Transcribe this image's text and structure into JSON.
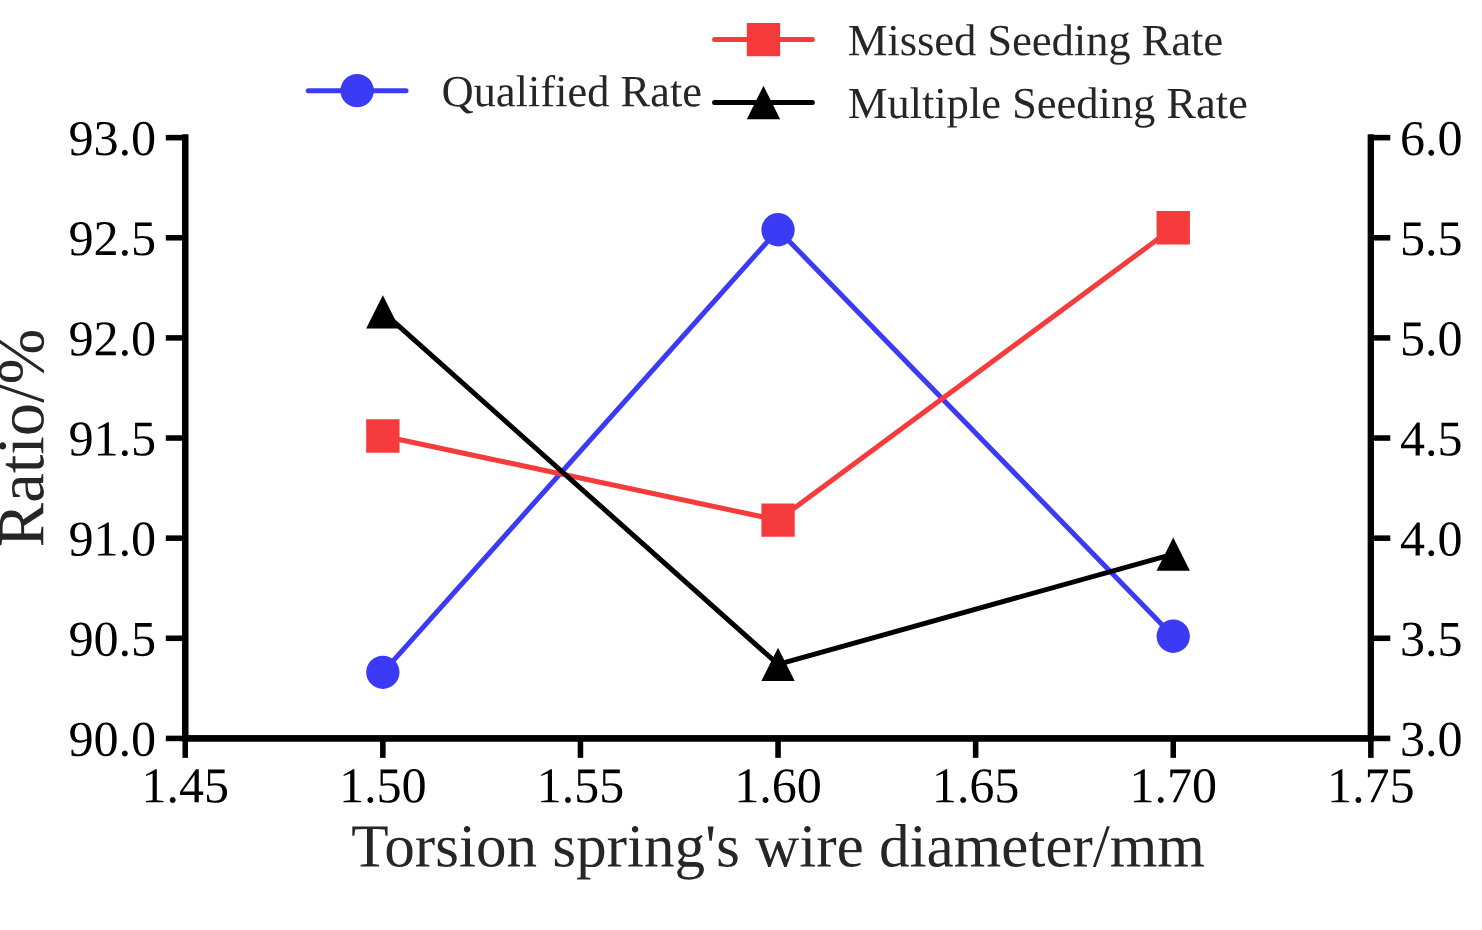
{
  "chart_data": {
    "type": "line",
    "xlabel": "Torsion spring's wire diameter/mm",
    "ylabel": "Ratio/%",
    "x": [
      1.5,
      1.6,
      1.7
    ],
    "series": [
      {
        "name": "Qualified Rate",
        "color": "#3b3bf5",
        "marker": "circle",
        "values": [
          90.33,
          92.54,
          90.51
        ]
      },
      {
        "name": "Missed Seeding Rate",
        "color": "#f53b3b",
        "marker": "square",
        "axis": "y2",
        "values": [
          4.51,
          4.09,
          5.55
        ]
      },
      {
        "name": "Multiple Seeding Rate",
        "color": "#000000",
        "marker": "triangle",
        "axis": "y2",
        "values": [
          5.13,
          3.37,
          3.92
        ]
      }
    ],
    "xlim": [
      1.45,
      1.75
    ],
    "xticks": [
      {
        "value": 1.45,
        "label": "1.45"
      },
      {
        "value": 1.5,
        "label": "1.50"
      },
      {
        "value": 1.55,
        "label": "1.55"
      },
      {
        "value": 1.6,
        "label": "1.60"
      },
      {
        "value": 1.65,
        "label": "1.65"
      },
      {
        "value": 1.7,
        "label": "1.70"
      },
      {
        "value": 1.75,
        "label": "1.75"
      }
    ],
    "ylim": [
      90.0,
      93.0
    ],
    "yticks": [
      {
        "value": 90.0,
        "label": "90.0"
      },
      {
        "value": 90.5,
        "label": "90.5"
      },
      {
        "value": 91.0,
        "label": "91.0"
      },
      {
        "value": 91.5,
        "label": "91.5"
      },
      {
        "value": 92.0,
        "label": "92.0"
      },
      {
        "value": 92.5,
        "label": "92.5"
      },
      {
        "value": 93.0,
        "label": "93.0"
      }
    ],
    "y2lim": [
      3.0,
      6.0
    ],
    "y2ticks": [
      {
        "value": 3.0,
        "label": "3.0"
      },
      {
        "value": 3.5,
        "label": "3.5"
      },
      {
        "value": 4.0,
        "label": "4.0"
      },
      {
        "value": 4.5,
        "label": "4.5"
      },
      {
        "value": 5.0,
        "label": "5.0"
      },
      {
        "value": 5.5,
        "label": "5.5"
      },
      {
        "value": 6.0,
        "label": "6.0"
      }
    ],
    "legend": "top",
    "grid": false,
    "line_style": "solid"
  }
}
